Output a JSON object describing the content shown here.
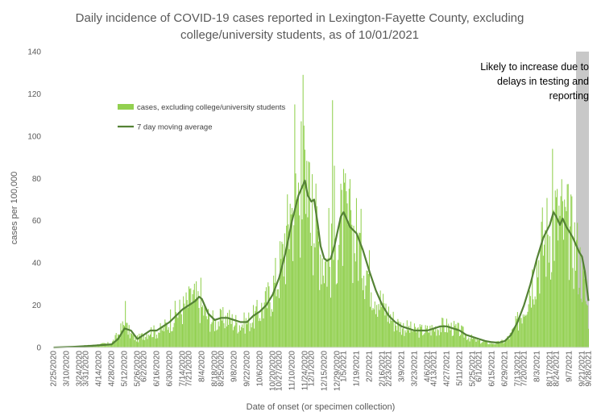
{
  "chart_data": {
    "type": "bar",
    "title_lines": [
      "Daily incidence of COVID-19 cases reported in Lexington-Fayette County, excluding",
      "college/university students, as of 10/01/2021"
    ],
    "xlabel": "Date of onset (or specimen collection)",
    "ylabel": "cases per 100,000",
    "ylim": [
      0,
      140
    ],
    "yticks": [
      0,
      20,
      40,
      60,
      80,
      100,
      120,
      140
    ],
    "grid": false,
    "legend_position": "upper-left",
    "x_start": "2/25/2020",
    "x_end": "9/28/2021",
    "x_tick_labels": [
      "2/25/2020",
      "3/10/2020",
      "3/24/2020",
      "3/31/2020",
      "4/14/2020",
      "4/28/2020",
      "5/12/2020",
      "5/26/2020",
      "6/2/2020",
      "6/16/2020",
      "6/30/2020",
      "7/14/2020",
      "7/21/2020",
      "8/4/2020",
      "8/18/2020",
      "8/25/2020",
      "9/8/2020",
      "9/22/2020",
      "10/6/2020",
      "10/20/2020",
      "10/27/2020",
      "11/10/2020",
      "11/24/2020",
      "12/1/2020",
      "12/15/2020",
      "12/29/2020",
      "1/5/2021",
      "1/19/2021",
      "2/2/2021",
      "2/16/2021",
      "2/23/2021",
      "3/9/2021",
      "3/23/2021",
      "4/6/2021",
      "4/13/2021",
      "4/27/2021",
      "5/11/2021",
      "5/25/2021",
      "6/1/2021",
      "6/15/2021",
      "6/29/2021",
      "7/13/2021",
      "7/20/2021",
      "8/3/2021",
      "8/17/2021",
      "8/24/2021",
      "9/7/2021",
      "9/21/2021",
      "9/28/2021"
    ],
    "series": [
      {
        "name": "cases, excluding college/university students",
        "kind": "bar",
        "color": "#92d050",
        "keypoints": [
          [
            "2/25/2020",
            0
          ],
          [
            "3/10/2020",
            0.3
          ],
          [
            "3/24/2020",
            0.6
          ],
          [
            "4/7/2020",
            1
          ],
          [
            "4/28/2020",
            2
          ],
          [
            "5/5/2020",
            6
          ],
          [
            "5/12/2020",
            11
          ],
          [
            "5/19/2020",
            6
          ],
          [
            "5/26/2020",
            4
          ],
          [
            "6/2/2020",
            6
          ],
          [
            "6/9/2020",
            8
          ],
          [
            "6/16/2020",
            7
          ],
          [
            "6/23/2020",
            9
          ],
          [
            "6/30/2020",
            12
          ],
          [
            "7/7/2020",
            16
          ],
          [
            "7/14/2020",
            18
          ],
          [
            "7/21/2020",
            21
          ],
          [
            "7/28/2020",
            23
          ],
          [
            "8/4/2020",
            19
          ],
          [
            "8/11/2020",
            14
          ],
          [
            "8/18/2020",
            12
          ],
          [
            "8/25/2020",
            13
          ],
          [
            "9/1/2020",
            14
          ],
          [
            "9/8/2020",
            12
          ],
          [
            "9/15/2020",
            11
          ],
          [
            "9/22/2020",
            12
          ],
          [
            "9/29/2020",
            14
          ],
          [
            "10/6/2020",
            17
          ],
          [
            "10/13/2020",
            21
          ],
          [
            "10/20/2020",
            27
          ],
          [
            "10/27/2020",
            36
          ],
          [
            "11/3/2020",
            48
          ],
          [
            "11/10/2020",
            65
          ],
          [
            "11/17/2020",
            74
          ],
          [
            "11/24/2020",
            70
          ],
          [
            "12/1/2020",
            66
          ],
          [
            "12/8/2020",
            52
          ],
          [
            "12/15/2020",
            42
          ],
          [
            "12/22/2020",
            40
          ],
          [
            "12/29/2020",
            52
          ],
          [
            "1/5/2021",
            60
          ],
          [
            "1/12/2021",
            56
          ],
          [
            "1/19/2021",
            52
          ],
          [
            "1/26/2021",
            44
          ],
          [
            "2/2/2021",
            34
          ],
          [
            "2/9/2021",
            26
          ],
          [
            "2/16/2021",
            20
          ],
          [
            "2/23/2021",
            16
          ],
          [
            "3/2/2021",
            12
          ],
          [
            "3/9/2021",
            10
          ],
          [
            "3/16/2021",
            9
          ],
          [
            "3/23/2021",
            8
          ],
          [
            "3/30/2021",
            8
          ],
          [
            "4/6/2021",
            8
          ],
          [
            "4/13/2021",
            9
          ],
          [
            "4/20/2021",
            10
          ],
          [
            "4/27/2021",
            10
          ],
          [
            "5/4/2021",
            9
          ],
          [
            "5/11/2021",
            8
          ],
          [
            "5/18/2021",
            6
          ],
          [
            "5/25/2021",
            4
          ],
          [
            "6/1/2021",
            3
          ],
          [
            "6/8/2021",
            2.5
          ],
          [
            "6/15/2021",
            2
          ],
          [
            "6/22/2021",
            2.2
          ],
          [
            "6/29/2021",
            3
          ],
          [
            "7/6/2021",
            6
          ],
          [
            "7/13/2021",
            12
          ],
          [
            "7/20/2021",
            20
          ],
          [
            "7/27/2021",
            30
          ],
          [
            "8/3/2021",
            40
          ],
          [
            "8/10/2021",
            50
          ],
          [
            "8/17/2021",
            56
          ],
          [
            "8/24/2021",
            62
          ],
          [
            "8/31/2021",
            60
          ],
          [
            "9/7/2021",
            54
          ],
          [
            "9/14/2021",
            48
          ],
          [
            "9/21/2021",
            35
          ],
          [
            "9/28/2021",
            15
          ]
        ]
      },
      {
        "name": "7 day moving average",
        "kind": "line",
        "color": "#548235",
        "points": [
          [
            "2/25/2020",
            0
          ],
          [
            "3/17/2020",
            0.3
          ],
          [
            "4/7/2020",
            0.8
          ],
          [
            "4/28/2020",
            1.5
          ],
          [
            "5/5/2020",
            4
          ],
          [
            "5/12/2020",
            9
          ],
          [
            "5/19/2020",
            8
          ],
          [
            "5/26/2020",
            4
          ],
          [
            "6/2/2020",
            6
          ],
          [
            "6/9/2020",
            8
          ],
          [
            "6/16/2020",
            8
          ],
          [
            "6/23/2020",
            10
          ],
          [
            "6/30/2020",
            12
          ],
          [
            "7/7/2020",
            15
          ],
          [
            "7/14/2020",
            18
          ],
          [
            "7/21/2020",
            20
          ],
          [
            "7/28/2020",
            22
          ],
          [
            "8/1/2020",
            24
          ],
          [
            "8/4/2020",
            23
          ],
          [
            "8/11/2020",
            16
          ],
          [
            "8/18/2020",
            13
          ],
          [
            "8/25/2020",
            14
          ],
          [
            "9/1/2020",
            14
          ],
          [
            "9/8/2020",
            13
          ],
          [
            "9/15/2020",
            12
          ],
          [
            "9/22/2020",
            12
          ],
          [
            "9/29/2020",
            15
          ],
          [
            "10/6/2020",
            17
          ],
          [
            "10/13/2020",
            20
          ],
          [
            "10/20/2020",
            25
          ],
          [
            "10/27/2020",
            33
          ],
          [
            "11/3/2020",
            45
          ],
          [
            "11/10/2020",
            60
          ],
          [
            "11/17/2020",
            72
          ],
          [
            "11/24/2020",
            79
          ],
          [
            "11/27/2020",
            72
          ],
          [
            "12/1/2020",
            69
          ],
          [
            "12/4/2020",
            70
          ],
          [
            "12/8/2020",
            58
          ],
          [
            "12/11/2020",
            48
          ],
          [
            "12/15/2020",
            42
          ],
          [
            "12/18/2020",
            41
          ],
          [
            "12/22/2020",
            42
          ],
          [
            "12/26/2020",
            48
          ],
          [
            "12/29/2020",
            54
          ],
          [
            "1/2/2021",
            62
          ],
          [
            "1/5/2021",
            64
          ],
          [
            "1/9/2021",
            60
          ],
          [
            "1/12/2021",
            57
          ],
          [
            "1/19/2021",
            54
          ],
          [
            "1/26/2021",
            46
          ],
          [
            "2/2/2021",
            36
          ],
          [
            "2/9/2021",
            27
          ],
          [
            "2/16/2021",
            20
          ],
          [
            "2/23/2021",
            15
          ],
          [
            "3/2/2021",
            12
          ],
          [
            "3/9/2021",
            10
          ],
          [
            "3/16/2021",
            9
          ],
          [
            "3/23/2021",
            8
          ],
          [
            "3/30/2021",
            8
          ],
          [
            "4/6/2021",
            8
          ],
          [
            "4/13/2021",
            9
          ],
          [
            "4/20/2021",
            10
          ],
          [
            "4/27/2021",
            10
          ],
          [
            "5/4/2021",
            9
          ],
          [
            "5/11/2021",
            8
          ],
          [
            "5/18/2021",
            6
          ],
          [
            "5/25/2021",
            5
          ],
          [
            "6/1/2021",
            4
          ],
          [
            "6/8/2021",
            3
          ],
          [
            "6/15/2021",
            2.5
          ],
          [
            "6/22/2021",
            2.2
          ],
          [
            "6/29/2021",
            3
          ],
          [
            "7/6/2021",
            6
          ],
          [
            "7/13/2021",
            12
          ],
          [
            "7/20/2021",
            20
          ],
          [
            "7/27/2021",
            30
          ],
          [
            "8/3/2021",
            42
          ],
          [
            "8/10/2021",
            52
          ],
          [
            "8/17/2021",
            58
          ],
          [
            "8/21/2021",
            64
          ],
          [
            "8/24/2021",
            62
          ],
          [
            "8/28/2021",
            58
          ],
          [
            "8/31/2021",
            61
          ],
          [
            "9/4/2021",
            57
          ],
          [
            "9/7/2021",
            55
          ],
          [
            "9/11/2021",
            52
          ],
          [
            "9/14/2021",
            49
          ],
          [
            "9/18/2021",
            45
          ],
          [
            "9/21/2021",
            43
          ],
          [
            "9/24/2021",
            36
          ],
          [
            "9/28/2021",
            22
          ]
        ]
      }
    ],
    "spikes": [
      [
        "5/13/2020",
        22
      ],
      [
        "7/1/2020",
        18
      ],
      [
        "7/23/2020",
        28
      ],
      [
        "8/3/2020",
        33
      ],
      [
        "10/21/2020",
        34
      ],
      [
        "11/2/2020",
        54
      ],
      [
        "11/8/2020",
        68
      ],
      [
        "11/13/2020",
        115
      ],
      [
        "11/20/2020",
        107
      ],
      [
        "11/22/2020",
        129
      ],
      [
        "11/23/2020",
        105
      ],
      [
        "11/28/2020",
        88
      ],
      [
        "12/2/2020",
        82
      ],
      [
        "12/20/2020",
        66
      ],
      [
        "12/24/2020",
        117
      ],
      [
        "12/26/2020",
        86
      ],
      [
        "1/6/2021",
        78
      ],
      [
        "1/13/2021",
        65
      ],
      [
        "8/20/2021",
        94
      ],
      [
        "8/25/2021",
        75
      ],
      [
        "9/2/2021",
        70
      ]
    ],
    "shaded_region": {
      "start": "9/15/2021",
      "end": "9/28/2021",
      "color": "#c8c8c8"
    },
    "annotation": "Likely to increase due to delays in testing and reporting",
    "annotation_lines": [
      "Likely to increase due to",
      "delays in testing and",
      "reporting"
    ]
  }
}
